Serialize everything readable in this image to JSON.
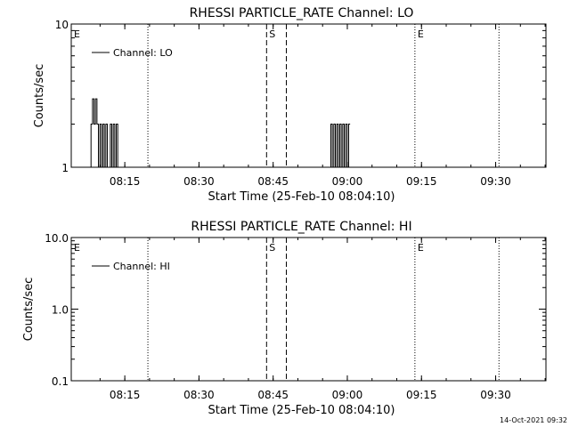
{
  "footer": {
    "timestamp": "14-Oct-2021 09:32"
  },
  "chart_data": [
    {
      "type": "line",
      "title": "RHESSI PARTICLE_RATE Channel: LO",
      "xlabel": "Start Time (25-Feb-10 08:04:10)",
      "ylabel": "Counts/sec",
      "yscale": "log",
      "ylim": [
        1,
        10
      ],
      "ytick_labels": [
        "1",
        "10"
      ],
      "ytick_values": [
        1,
        10
      ],
      "xlim_minutes": [
        0,
        96
      ],
      "xtick_labels": [
        "08:15",
        "08:30",
        "08:45",
        "09:00",
        "09:15",
        "09:30"
      ],
      "xtick_minutes": [
        10.83,
        25.83,
        40.83,
        55.83,
        70.83,
        85.83
      ],
      "legend": {
        "label": "Channel: LO",
        "placement": "top-left"
      },
      "series": [
        {
          "name": "Channel: LO",
          "segments": [
            {
              "x": [
                4.0,
                4.3,
                4.6,
                4.9,
                5.2,
                5.5,
                5.8,
                6.1,
                6.4,
                6.7,
                7.0,
                7.3,
                7.6,
                7.9,
                8.2,
                8.5,
                8.8,
                9.1,
                9.4,
                9.7
              ],
              "y": [
                2,
                3,
                2,
                3,
                2,
                1,
                2,
                1,
                2,
                1,
                2,
                1,
                1,
                2,
                1,
                2,
                1,
                2,
                1,
                1
              ]
            },
            {
              "x": [
                52.5,
                52.8,
                53.1,
                53.4,
                53.7,
                54.0,
                54.3,
                54.6,
                54.9,
                55.2,
                55.5,
                55.8,
                56.1
              ],
              "y": [
                2,
                1,
                2,
                1,
                2,
                1,
                2,
                1,
                2,
                1,
                2,
                1,
                2
              ]
            }
          ]
        }
      ],
      "event_markers": [
        {
          "label": "E",
          "minute": 0,
          "style": "dotted"
        },
        {
          "label": "",
          "minute": 15.5,
          "style": "dotted"
        },
        {
          "label": "S",
          "minute": 39.5,
          "style": "dashed"
        },
        {
          "label": "",
          "minute": 43.5,
          "style": "dashed"
        },
        {
          "label": "E",
          "minute": 69.5,
          "style": "dotted"
        },
        {
          "label": "",
          "minute": 86.5,
          "style": "dotted"
        }
      ]
    },
    {
      "type": "line",
      "title": "RHESSI PARTICLE_RATE Channel: HI",
      "xlabel": "Start Time (25-Feb-10 08:04:10)",
      "ylabel": "Counts/sec",
      "yscale": "log",
      "ylim": [
        0.1,
        10
      ],
      "ytick_labels": [
        "0.1",
        "1.0",
        "10.0"
      ],
      "ytick_values": [
        0.1,
        1,
        10
      ],
      "xlim_minutes": [
        0,
        96
      ],
      "xtick_labels": [
        "08:15",
        "08:30",
        "08:45",
        "09:00",
        "09:15",
        "09:30"
      ],
      "xtick_minutes": [
        10.83,
        25.83,
        40.83,
        55.83,
        70.83,
        85.83
      ],
      "legend": {
        "label": "Channel: HI",
        "placement": "top-left"
      },
      "series": [
        {
          "name": "Channel: HI",
          "segments": []
        }
      ],
      "event_markers": [
        {
          "label": "E",
          "minute": 0,
          "style": "dotted"
        },
        {
          "label": "",
          "minute": 15.5,
          "style": "dotted"
        },
        {
          "label": "S",
          "minute": 39.5,
          "style": "dashed"
        },
        {
          "label": "",
          "minute": 43.5,
          "style": "dashed"
        },
        {
          "label": "E",
          "minute": 69.5,
          "style": "dotted"
        },
        {
          "label": "",
          "minute": 86.5,
          "style": "dotted"
        }
      ]
    }
  ]
}
